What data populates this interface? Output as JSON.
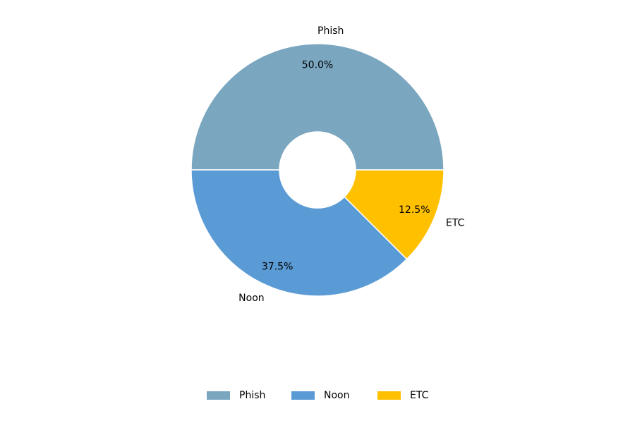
{
  "chart_data": {
    "type": "donut",
    "categories": [
      "Phish",
      "Noon",
      "ETC"
    ],
    "values": [
      50,
      37.5,
      12.5
    ],
    "value_labels": [
      "50.0%",
      "37.5%",
      "12.5%"
    ],
    "colors": [
      "#7aa6c0",
      "#5b9bd5",
      "#ffc000"
    ],
    "legend": "lower center"
  }
}
